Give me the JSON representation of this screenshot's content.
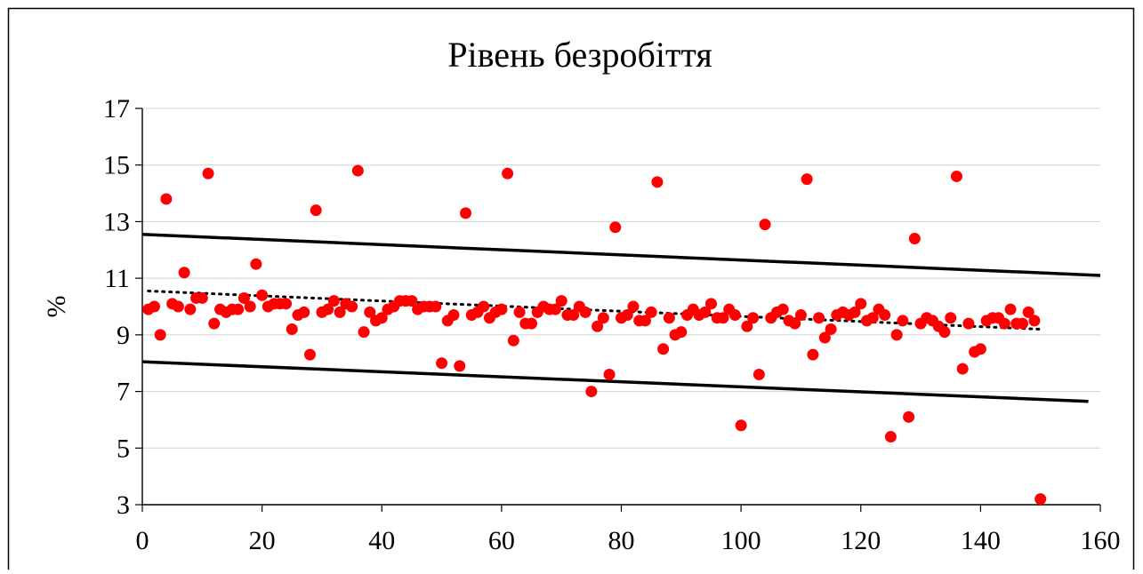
{
  "chart_data": {
    "type": "scatter",
    "title": "Рівень безробіття",
    "xlabel": "",
    "ylabel": "%",
    "xlim": [
      0,
      160
    ],
    "ylim": [
      3,
      17
    ],
    "xticks": [
      "0",
      "20",
      "40",
      "60",
      "80",
      "100",
      "120",
      "140",
      "160"
    ],
    "yticks": [
      "3",
      "5",
      "7",
      "9",
      "11",
      "13",
      "15",
      "17"
    ],
    "grid": "horizontal",
    "legend": "none",
    "colors": {
      "points": "#ff0000",
      "lines": "#000000",
      "grid": "#d9d9d9"
    },
    "series": [
      {
        "marker": "circle",
        "x": [
          1,
          2,
          3,
          4,
          5,
          6,
          7,
          8,
          9,
          10,
          11,
          12,
          13,
          14,
          15,
          16,
          17,
          18,
          19,
          20,
          21,
          22,
          23,
          24,
          25,
          26,
          27,
          28,
          29,
          30,
          31,
          32,
          33,
          34,
          35,
          36,
          37,
          38,
          39,
          40,
          41,
          42,
          43,
          44,
          45,
          46,
          47,
          48,
          49,
          50,
          51,
          52,
          53,
          54,
          55,
          56,
          57,
          58,
          59,
          60,
          61,
          62,
          63,
          64,
          65,
          66,
          67,
          68,
          69,
          70,
          71,
          72,
          73,
          74,
          75,
          76,
          77,
          78,
          79,
          80,
          81,
          82,
          83,
          84,
          85,
          86,
          87,
          88,
          89,
          90,
          91,
          92,
          93,
          94,
          95,
          96,
          97,
          98,
          99,
          100,
          101,
          102,
          103,
          104,
          105,
          106,
          107,
          108,
          109,
          110,
          111,
          112,
          113,
          114,
          115,
          116,
          117,
          118,
          119,
          120,
          121,
          122,
          123,
          124,
          125,
          126,
          127,
          128,
          129,
          130,
          131,
          132,
          133,
          134,
          135,
          136,
          137,
          138,
          139,
          140,
          141,
          142,
          143,
          144,
          145,
          146,
          147,
          148,
          149,
          150
        ],
        "y": [
          9.9,
          10.0,
          9.0,
          13.8,
          10.1,
          10.0,
          11.2,
          9.9,
          10.3,
          10.3,
          14.7,
          9.4,
          9.9,
          9.8,
          9.9,
          9.9,
          10.3,
          10.0,
          11.5,
          10.4,
          10.0,
          10.1,
          10.1,
          10.1,
          9.2,
          9.7,
          9.8,
          8.3,
          13.4,
          9.8,
          9.9,
          10.2,
          9.8,
          10.1,
          10.0,
          14.8,
          9.1,
          9.8,
          9.5,
          9.6,
          9.9,
          10.0,
          10.2,
          10.2,
          10.2,
          9.9,
          10.0,
          10.0,
          10.0,
          8.0,
          9.5,
          9.7,
          7.9,
          13.3,
          9.7,
          9.8,
          10.0,
          9.6,
          9.8,
          9.9,
          14.7,
          8.8,
          9.8,
          9.4,
          9.4,
          9.8,
          10.0,
          9.9,
          9.9,
          10.2,
          9.7,
          9.7,
          10.0,
          9.8,
          7.0,
          9.3,
          9.6,
          7.6,
          12.8,
          9.6,
          9.7,
          10.0,
          9.5,
          9.5,
          9.8,
          14.4,
          8.5,
          9.6,
          9.0,
          9.1,
          9.7,
          9.9,
          9.7,
          9.8,
          10.1,
          9.6,
          9.6,
          9.9,
          9.7,
          5.8,
          9.3,
          9.6,
          7.6,
          12.9,
          9.6,
          9.8,
          9.9,
          9.5,
          9.4,
          9.7,
          14.5,
          8.3,
          9.6,
          8.9,
          9.2,
          9.7,
          9.8,
          9.7,
          9.8,
          10.1,
          9.5,
          9.6,
          9.9,
          9.7,
          5.4,
          9.0,
          9.5,
          6.1,
          12.4,
          9.4,
          9.6,
          9.5,
          9.3,
          9.1,
          9.6,
          14.6,
          7.8,
          9.4,
          8.4,
          8.5,
          9.5,
          9.6,
          9.6,
          9.4,
          9.9,
          9.4,
          9.4,
          9.8,
          9.5,
          3.2
        ]
      }
    ],
    "trend_line": {
      "x": [
        1,
        150
      ],
      "y": [
        10.55,
        9.2
      ],
      "style": "dotted"
    },
    "upper_band": {
      "x": [
        0,
        160
      ],
      "y": [
        12.55,
        11.1
      ],
      "style": "solid"
    },
    "lower_band": {
      "x": [
        0,
        158
      ],
      "y": [
        8.05,
        6.65
      ],
      "style": "solid"
    }
  }
}
